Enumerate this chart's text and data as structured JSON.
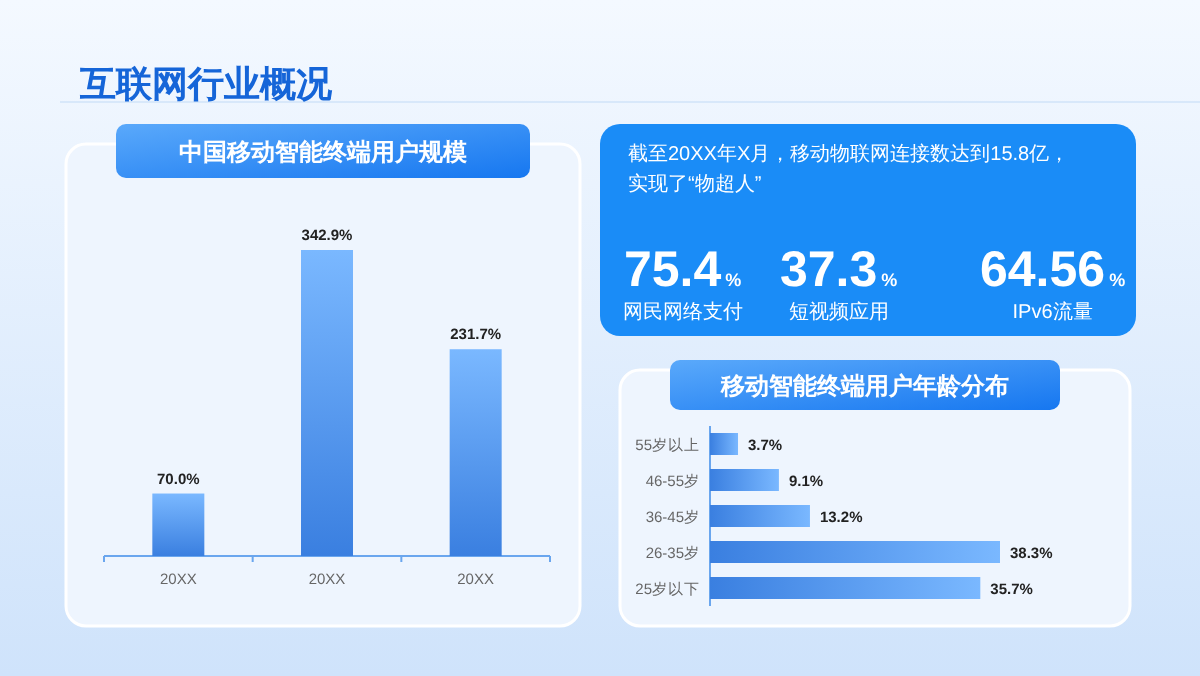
{
  "chart_data": [
    {
      "type": "bar",
      "title": "中国移动智能终端用户规模",
      "annotations": [
        "互联网行业概况"
      ],
      "categories": [
        "20XX",
        "20XX",
        "20XX"
      ],
      "values": [
        70.0,
        342.9,
        231.7
      ],
      "value_labels": [
        "70.0%",
        "342.9%",
        "231.7%"
      ],
      "color": "#3a7fe0"
    },
    {
      "type": "other",
      "annotations": [
        "截至20XX年X月，移动物联网连接数达到15.8亿，实现了“物超人”"
      ],
      "categories": [
        "网民网络支付",
        "短视频应用",
        "IPv6流量"
      ],
      "values": [
        75.4,
        37.3,
        64.56
      ],
      "value_labels": [
        "75.4%",
        "37.3%",
        "64.56%"
      ],
      "color": "#1a8cf7"
    },
    {
      "type": "bar",
      "orientation": "horizontal",
      "title": "移动智能终端用户年龄分布",
      "categories": [
        "55岁以上",
        "46-55岁",
        "36-45岁",
        "26-35岁",
        "25岁以下"
      ],
      "values": [
        3.7,
        9.1,
        13.2,
        38.3,
        35.7
      ],
      "value_labels": [
        "3.7%",
        "9.1%",
        "13.2%",
        "38.3%",
        "35.7%"
      ],
      "color": "#3a7fe0"
    }
  ]
}
